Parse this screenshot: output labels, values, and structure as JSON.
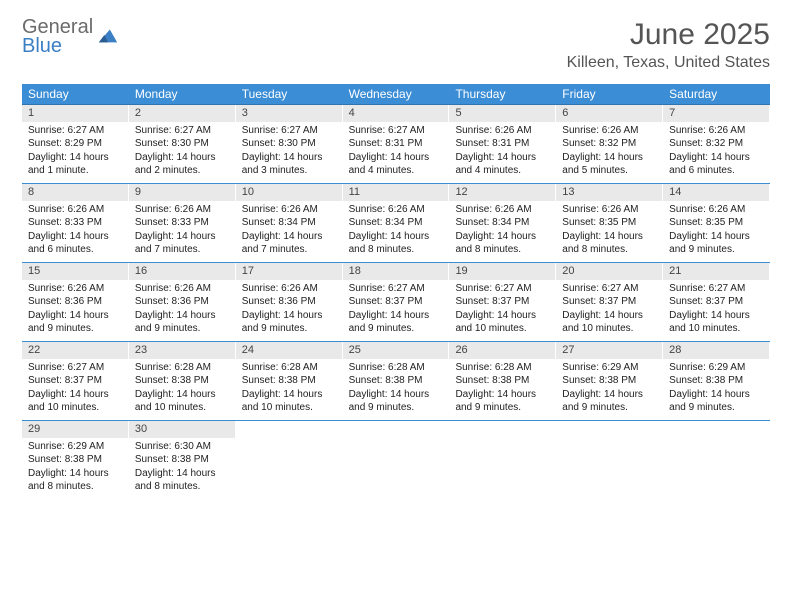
{
  "logo": {
    "line1": "General",
    "line2": "Blue",
    "text_color_top": "#6b6b6b",
    "text_color_bottom": "#3b7fc4",
    "mark_color": "#3b7fc4"
  },
  "title": {
    "month": "June 2025",
    "location": "Killeen, Texas, United States",
    "month_fontsize": 30,
    "location_fontsize": 16,
    "text_color": "#555555"
  },
  "calendar": {
    "header_bg": "#3b8dd6",
    "header_text_color": "#ffffff",
    "daynum_bg": "#e9e9e9",
    "row_border_color": "#3b8dd6",
    "body_fontsize": 10,
    "days_of_week": [
      "Sunday",
      "Monday",
      "Tuesday",
      "Wednesday",
      "Thursday",
      "Friday",
      "Saturday"
    ],
    "weeks": [
      [
        {
          "num": "1",
          "sunrise": "Sunrise: 6:27 AM",
          "sunset": "Sunset: 8:29 PM",
          "daylight1": "Daylight: 14 hours",
          "daylight2": "and 1 minute."
        },
        {
          "num": "2",
          "sunrise": "Sunrise: 6:27 AM",
          "sunset": "Sunset: 8:30 PM",
          "daylight1": "Daylight: 14 hours",
          "daylight2": "and 2 minutes."
        },
        {
          "num": "3",
          "sunrise": "Sunrise: 6:27 AM",
          "sunset": "Sunset: 8:30 PM",
          "daylight1": "Daylight: 14 hours",
          "daylight2": "and 3 minutes."
        },
        {
          "num": "4",
          "sunrise": "Sunrise: 6:27 AM",
          "sunset": "Sunset: 8:31 PM",
          "daylight1": "Daylight: 14 hours",
          "daylight2": "and 4 minutes."
        },
        {
          "num": "5",
          "sunrise": "Sunrise: 6:26 AM",
          "sunset": "Sunset: 8:31 PM",
          "daylight1": "Daylight: 14 hours",
          "daylight2": "and 4 minutes."
        },
        {
          "num": "6",
          "sunrise": "Sunrise: 6:26 AM",
          "sunset": "Sunset: 8:32 PM",
          "daylight1": "Daylight: 14 hours",
          "daylight2": "and 5 minutes."
        },
        {
          "num": "7",
          "sunrise": "Sunrise: 6:26 AM",
          "sunset": "Sunset: 8:32 PM",
          "daylight1": "Daylight: 14 hours",
          "daylight2": "and 6 minutes."
        }
      ],
      [
        {
          "num": "8",
          "sunrise": "Sunrise: 6:26 AM",
          "sunset": "Sunset: 8:33 PM",
          "daylight1": "Daylight: 14 hours",
          "daylight2": "and 6 minutes."
        },
        {
          "num": "9",
          "sunrise": "Sunrise: 6:26 AM",
          "sunset": "Sunset: 8:33 PM",
          "daylight1": "Daylight: 14 hours",
          "daylight2": "and 7 minutes."
        },
        {
          "num": "10",
          "sunrise": "Sunrise: 6:26 AM",
          "sunset": "Sunset: 8:34 PM",
          "daylight1": "Daylight: 14 hours",
          "daylight2": "and 7 minutes."
        },
        {
          "num": "11",
          "sunrise": "Sunrise: 6:26 AM",
          "sunset": "Sunset: 8:34 PM",
          "daylight1": "Daylight: 14 hours",
          "daylight2": "and 8 minutes."
        },
        {
          "num": "12",
          "sunrise": "Sunrise: 6:26 AM",
          "sunset": "Sunset: 8:34 PM",
          "daylight1": "Daylight: 14 hours",
          "daylight2": "and 8 minutes."
        },
        {
          "num": "13",
          "sunrise": "Sunrise: 6:26 AM",
          "sunset": "Sunset: 8:35 PM",
          "daylight1": "Daylight: 14 hours",
          "daylight2": "and 8 minutes."
        },
        {
          "num": "14",
          "sunrise": "Sunrise: 6:26 AM",
          "sunset": "Sunset: 8:35 PM",
          "daylight1": "Daylight: 14 hours",
          "daylight2": "and 9 minutes."
        }
      ],
      [
        {
          "num": "15",
          "sunrise": "Sunrise: 6:26 AM",
          "sunset": "Sunset: 8:36 PM",
          "daylight1": "Daylight: 14 hours",
          "daylight2": "and 9 minutes."
        },
        {
          "num": "16",
          "sunrise": "Sunrise: 6:26 AM",
          "sunset": "Sunset: 8:36 PM",
          "daylight1": "Daylight: 14 hours",
          "daylight2": "and 9 minutes."
        },
        {
          "num": "17",
          "sunrise": "Sunrise: 6:26 AM",
          "sunset": "Sunset: 8:36 PM",
          "daylight1": "Daylight: 14 hours",
          "daylight2": "and 9 minutes."
        },
        {
          "num": "18",
          "sunrise": "Sunrise: 6:27 AM",
          "sunset": "Sunset: 8:37 PM",
          "daylight1": "Daylight: 14 hours",
          "daylight2": "and 9 minutes."
        },
        {
          "num": "19",
          "sunrise": "Sunrise: 6:27 AM",
          "sunset": "Sunset: 8:37 PM",
          "daylight1": "Daylight: 14 hours",
          "daylight2": "and 10 minutes."
        },
        {
          "num": "20",
          "sunrise": "Sunrise: 6:27 AM",
          "sunset": "Sunset: 8:37 PM",
          "daylight1": "Daylight: 14 hours",
          "daylight2": "and 10 minutes."
        },
        {
          "num": "21",
          "sunrise": "Sunrise: 6:27 AM",
          "sunset": "Sunset: 8:37 PM",
          "daylight1": "Daylight: 14 hours",
          "daylight2": "and 10 minutes."
        }
      ],
      [
        {
          "num": "22",
          "sunrise": "Sunrise: 6:27 AM",
          "sunset": "Sunset: 8:37 PM",
          "daylight1": "Daylight: 14 hours",
          "daylight2": "and 10 minutes."
        },
        {
          "num": "23",
          "sunrise": "Sunrise: 6:28 AM",
          "sunset": "Sunset: 8:38 PM",
          "daylight1": "Daylight: 14 hours",
          "daylight2": "and 10 minutes."
        },
        {
          "num": "24",
          "sunrise": "Sunrise: 6:28 AM",
          "sunset": "Sunset: 8:38 PM",
          "daylight1": "Daylight: 14 hours",
          "daylight2": "and 10 minutes."
        },
        {
          "num": "25",
          "sunrise": "Sunrise: 6:28 AM",
          "sunset": "Sunset: 8:38 PM",
          "daylight1": "Daylight: 14 hours",
          "daylight2": "and 9 minutes."
        },
        {
          "num": "26",
          "sunrise": "Sunrise: 6:28 AM",
          "sunset": "Sunset: 8:38 PM",
          "daylight1": "Daylight: 14 hours",
          "daylight2": "and 9 minutes."
        },
        {
          "num": "27",
          "sunrise": "Sunrise: 6:29 AM",
          "sunset": "Sunset: 8:38 PM",
          "daylight1": "Daylight: 14 hours",
          "daylight2": "and 9 minutes."
        },
        {
          "num": "28",
          "sunrise": "Sunrise: 6:29 AM",
          "sunset": "Sunset: 8:38 PM",
          "daylight1": "Daylight: 14 hours",
          "daylight2": "and 9 minutes."
        }
      ],
      [
        {
          "num": "29",
          "sunrise": "Sunrise: 6:29 AM",
          "sunset": "Sunset: 8:38 PM",
          "daylight1": "Daylight: 14 hours",
          "daylight2": "and 8 minutes."
        },
        {
          "num": "30",
          "sunrise": "Sunrise: 6:30 AM",
          "sunset": "Sunset: 8:38 PM",
          "daylight1": "Daylight: 14 hours",
          "daylight2": "and 8 minutes."
        },
        null,
        null,
        null,
        null,
        null
      ]
    ]
  }
}
